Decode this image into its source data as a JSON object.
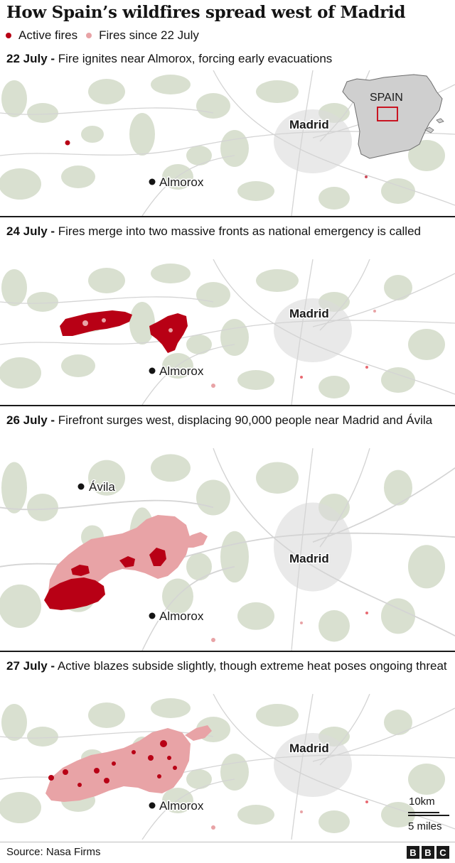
{
  "title": "How Spain’s wildfires spread west of Madrid",
  "legend": {
    "active": "Active fires",
    "since": "Fires since 22 July"
  },
  "colors": {
    "active": "#b80015",
    "since": "#e8a3a6",
    "terrain": "#d2dbc8",
    "urban": "#dadada",
    "roads": "#d4d4d4",
    "inset_land": "#cfcfcf",
    "inset_box": "#c8000f"
  },
  "panels": [
    {
      "date": "22 July -",
      "text": " Fire ignites near Almorox, forcing early evacuations",
      "labels": {
        "madrid": "Madrid",
        "almorox": "Almorox",
        "avila": ""
      },
      "inset": {
        "country": "SPAIN"
      }
    },
    {
      "date": "24 July -",
      "text": " Fires merge into two massive fronts as national emergency is called",
      "labels": {
        "madrid": "Madrid",
        "almorox": "Almorox",
        "avila": ""
      }
    },
    {
      "date": "26 July -",
      "text": " Firefront surges west, displacing 90,000 people near Madrid and Ávila",
      "labels": {
        "madrid": "Madrid",
        "almorox": "Almorox",
        "avila": "Ávila"
      }
    },
    {
      "date": "27 July -",
      "text": " Active blazes subside slightly, though extreme heat poses ongoing threat",
      "labels": {
        "madrid": "Madrid",
        "almorox": "Almorox",
        "avila": ""
      }
    }
  ],
  "scale": {
    "km": "10km",
    "miles": "5 miles"
  },
  "source": "Source: Nasa Firms",
  "brand": [
    "B",
    "B",
    "C"
  ]
}
